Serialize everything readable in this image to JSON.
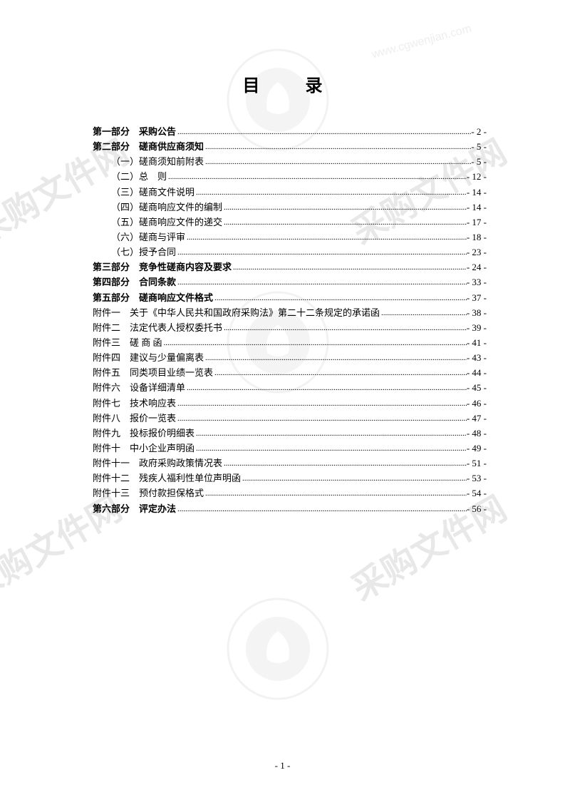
{
  "title": "目　录",
  "page_footer": "- 1 -",
  "watermark_text": "采购文件网",
  "watermark_url": "www.cgwenjian.com",
  "entries": [
    {
      "label": "第一部分　采购公告",
      "page": "- 2 -",
      "bold": true,
      "indent": false
    },
    {
      "label": "第二部分　磋商供应商须知",
      "page": "- 5 -",
      "bold": true,
      "indent": false
    },
    {
      "label": "（一）磋商须知前附表",
      "page": "- 5 -",
      "bold": false,
      "indent": true
    },
    {
      "label": "（二）总　则",
      "page": "- 12 -",
      "bold": false,
      "indent": true
    },
    {
      "label": "（三）磋商文件说明",
      "page": "- 14 -",
      "bold": false,
      "indent": true
    },
    {
      "label": "（四）磋商响应文件的编制",
      "page": "- 14 -",
      "bold": false,
      "indent": true
    },
    {
      "label": "（五）磋商响应文件的递交",
      "page": "- 17 -",
      "bold": false,
      "indent": true
    },
    {
      "label": "（六）磋商与评审",
      "page": "- 18 -",
      "bold": false,
      "indent": true
    },
    {
      "label": "（七）授予合同",
      "page": "- 23 -",
      "bold": false,
      "indent": true
    },
    {
      "label": "第三部分　竞争性磋商内容及要求",
      "page": "- 24 -",
      "bold": true,
      "indent": false
    },
    {
      "label": "第四部分　合同条款",
      "page": "- 33 -",
      "bold": true,
      "indent": false
    },
    {
      "label": "第五部分　磋商响应文件格式",
      "page": "- 37 -",
      "bold": true,
      "indent": false
    },
    {
      "label": "附件一　关于《中华人民共和国政府采购法》第二十二条规定的承诺函",
      "page": "- 38 -",
      "bold": false,
      "indent": false
    },
    {
      "label": "附件二　法定代表人授权委托书",
      "page": "- 39 -",
      "bold": false,
      "indent": false
    },
    {
      "label": "附件三　磋 商 函",
      "page": "- 41 -",
      "bold": false,
      "indent": false
    },
    {
      "label": "附件四　建议与少量偏离表",
      "page": "- 43 -",
      "bold": false,
      "indent": false
    },
    {
      "label": "附件五　同类项目业绩一览表",
      "page": "- 44 -",
      "bold": false,
      "indent": false
    },
    {
      "label": "附件六　设备详细清单",
      "page": "- 45 -",
      "bold": false,
      "indent": false
    },
    {
      "label": "附件七　技术响应表",
      "page": "- 46 -",
      "bold": false,
      "indent": false
    },
    {
      "label": "附件八　报价一览表",
      "page": "- 47 -",
      "bold": false,
      "indent": false
    },
    {
      "label": "附件九　投标报价明细表",
      "page": "- 48 -",
      "bold": false,
      "indent": false
    },
    {
      "label": "附件十　中小企业声明函",
      "page": "- 49 -",
      "bold": false,
      "indent": false
    },
    {
      "label": "附件十一　政府采购政策情况表",
      "page": "- 51 -",
      "bold": false,
      "indent": false
    },
    {
      "label": "附件十二　残疾人福利性单位声明函",
      "page": "- 53 -",
      "bold": false,
      "indent": false
    },
    {
      "label": "附件十三　预付款担保格式",
      "page": "- 54 -",
      "bold": false,
      "indent": false
    },
    {
      "label": "第六部分　评定办法",
      "page": "- 56 -",
      "bold": true,
      "indent": false
    }
  ]
}
